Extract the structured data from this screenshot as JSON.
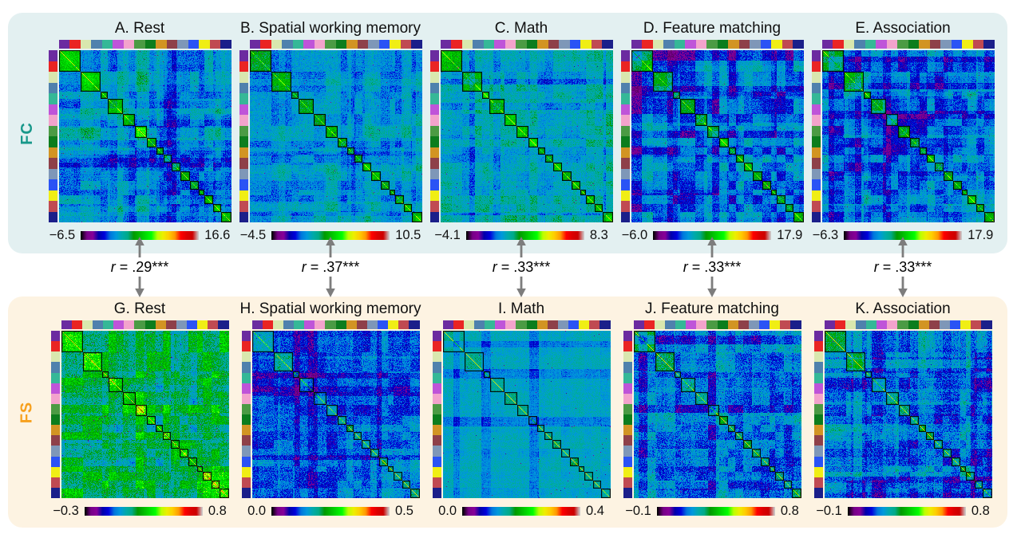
{
  "figure": {
    "arrow_color": "#7d7d7d",
    "rows": [
      {
        "label": "FC",
        "label_color": "#18988a",
        "band_color": "#e3f0f1",
        "panels": [
          {
            "title": "A. Rest",
            "cbar_min": "−6.5",
            "cbar_max": "16.6"
          },
          {
            "title": "B. Spatial working memory",
            "cbar_min": "−4.5",
            "cbar_max": "10.5"
          },
          {
            "title": "C. Math",
            "cbar_min": "−4.1",
            "cbar_max": "8.3"
          },
          {
            "title": "D. Feature matching",
            "cbar_min": "−6.0",
            "cbar_max": "17.9"
          },
          {
            "title": "E. Association",
            "cbar_min": "−6.3",
            "cbar_max": "17.9"
          }
        ]
      },
      {
        "label": "FS",
        "label_color": "#f7a01d",
        "band_color": "#fdf3e2",
        "panels": [
          {
            "title": "G. Rest",
            "cbar_min": "−0.3",
            "cbar_max": "0.8"
          },
          {
            "title": "H. Spatial working memory",
            "cbar_min": "0.0",
            "cbar_max": "0.5"
          },
          {
            "title": "I. Math",
            "cbar_min": "0.0",
            "cbar_max": "0.4"
          },
          {
            "title": "J. Feature matching",
            "cbar_min": "−0.1",
            "cbar_max": "0.8"
          },
          {
            "title": "K. Association",
            "cbar_min": "−0.1",
            "cbar_max": "0.8"
          }
        ]
      }
    ],
    "correlations": [
      {
        "var": "r",
        "rest": " = .29***"
      },
      {
        "var": "r",
        "rest": " = .37***"
      },
      {
        "var": "r",
        "rest": " = .33***"
      },
      {
        "var": "r",
        "rest": " = .33***"
      },
      {
        "var": "r",
        "rest": " = .33***"
      }
    ]
  },
  "chart_data": {
    "type": "heatmap",
    "description": "Group-level connectivity matrices (FC row, teal band) and similarity matrices (FS row, orange band) across five task states, nodes ordered by 16 networks shown as colored edge strips, black outlines around within-network diagonal blocks. Double-headed arrows give FC-FS spatial correlations.",
    "colormap": "nipy_spectral",
    "legend_position": "colorbar below each matrix",
    "n_networks": 16,
    "network_colors": [
      "#6b2ba0",
      "#ea2423",
      "#d9e7ae",
      "#4f81ad",
      "#35b897",
      "#bf54d9",
      "#f3a3cc",
      "#4b9b44",
      "#0c7d1d",
      "#d29423",
      "#8e4049",
      "#7e97b8",
      "#2a53f5",
      "#f0ee15",
      "#c04a52",
      "#1b1f8a"
    ],
    "block_fractions": [
      0.13,
      0.12,
      0.04,
      0.09,
      0.075,
      0.07,
      0.055,
      0.045,
      0.045,
      0.055,
      0.055,
      0.055,
      0.035,
      0.05,
      0.05,
      0.06
    ],
    "panels": [
      {
        "id": "A",
        "row": "FC",
        "title": "A. Rest",
        "vmin": -6.5,
        "vmax": 16.6,
        "seed": 11,
        "appearance": {
          "base": 0.31,
          "block": 0.21,
          "pairVar": 0.055,
          "stripe": 0.07,
          "noise": 0.05,
          "speckle": 0.004,
          "selfBoost": 0.15
        }
      },
      {
        "id": "B",
        "row": "FC",
        "title": "B. Spatial working memory",
        "vmin": -4.5,
        "vmax": 10.5,
        "seed": 22,
        "appearance": {
          "base": 0.31,
          "block": 0.17,
          "pairVar": 0.04,
          "stripe": 0.055,
          "noise": 0.05,
          "speckle": 0.002,
          "selfBoost": 0.15
        }
      },
      {
        "id": "C",
        "row": "FC",
        "title": "C. Math",
        "vmin": -4.1,
        "vmax": 8.3,
        "seed": 33,
        "appearance": {
          "base": 0.33,
          "block": 0.17,
          "pairVar": 0.04,
          "stripe": 0.055,
          "noise": 0.05,
          "speckle": 0.002,
          "selfBoost": 0.15
        }
      },
      {
        "id": "D",
        "row": "FC",
        "title": "D. Feature matching",
        "vmin": -6.0,
        "vmax": 17.9,
        "seed": 44,
        "appearance": {
          "base": 0.27,
          "block": 0.21,
          "pairVar": 0.065,
          "stripe": 0.075,
          "noise": 0.05,
          "speckle": 0.005,
          "selfBoost": 0.15
        }
      },
      {
        "id": "E",
        "row": "FC",
        "title": "E. Association",
        "vmin": -6.3,
        "vmax": 17.9,
        "seed": 55,
        "appearance": {
          "base": 0.27,
          "block": 0.2,
          "pairVar": 0.06,
          "stripe": 0.07,
          "noise": 0.05,
          "speckle": 0.005,
          "selfBoost": 0.15
        }
      },
      {
        "id": "G",
        "row": "FS",
        "title": "G. Rest",
        "vmin": -0.3,
        "vmax": 0.8,
        "seed": 66,
        "appearance": {
          "base": 0.45,
          "block": 0.13,
          "pairVar": 0.08,
          "stripe": 0.09,
          "noise": 0.07,
          "speckle": 0.006,
          "selfBoost": 0.18
        }
      },
      {
        "id": "H",
        "row": "FS",
        "title": "H. Spatial working memory",
        "vmin": 0.0,
        "vmax": 0.5,
        "seed": 77,
        "appearance": {
          "base": 0.245,
          "block": 0.11,
          "pairVar": 0.045,
          "stripe": 0.06,
          "noise": 0.06,
          "speckle": 0.004,
          "selfBoost": 0.3
        }
      },
      {
        "id": "I",
        "row": "FS",
        "title": "I. Math",
        "vmin": 0.0,
        "vmax": 0.4,
        "seed": 88,
        "appearance": {
          "base": 0.33,
          "block": 0.05,
          "pairVar": 0.012,
          "stripe": 0.025,
          "noise": 0.035,
          "speckle": 0.002,
          "selfBoost": 0.3
        }
      },
      {
        "id": "J",
        "row": "FS",
        "title": "J. Feature matching",
        "vmin": -0.1,
        "vmax": 0.8,
        "seed": 99,
        "appearance": {
          "base": 0.27,
          "block": 0.13,
          "pairVar": 0.055,
          "stripe": 0.07,
          "noise": 0.065,
          "speckle": 0.006,
          "selfBoost": 0.28
        }
      },
      {
        "id": "K",
        "row": "FS",
        "title": "K. Association",
        "vmin": -0.1,
        "vmax": 0.8,
        "seed": 111,
        "appearance": {
          "base": 0.27,
          "block": 0.13,
          "pairVar": 0.055,
          "stripe": 0.07,
          "noise": 0.065,
          "speckle": 0.006,
          "selfBoost": 0.28
        }
      }
    ],
    "correlations": [
      {
        "between": [
          "A. Rest",
          "G. Rest"
        ],
        "r": 0.29,
        "significance": "***"
      },
      {
        "between": [
          "B. Spatial working memory",
          "H. Spatial working memory"
        ],
        "r": 0.37,
        "significance": "***"
      },
      {
        "between": [
          "C. Math",
          "I. Math"
        ],
        "r": 0.33,
        "significance": "***"
      },
      {
        "between": [
          "D. Feature matching",
          "J. Feature matching"
        ],
        "r": 0.33,
        "significance": "***"
      },
      {
        "between": [
          "E. Association",
          "K. Association"
        ],
        "r": 0.33,
        "significance": "***"
      }
    ]
  }
}
